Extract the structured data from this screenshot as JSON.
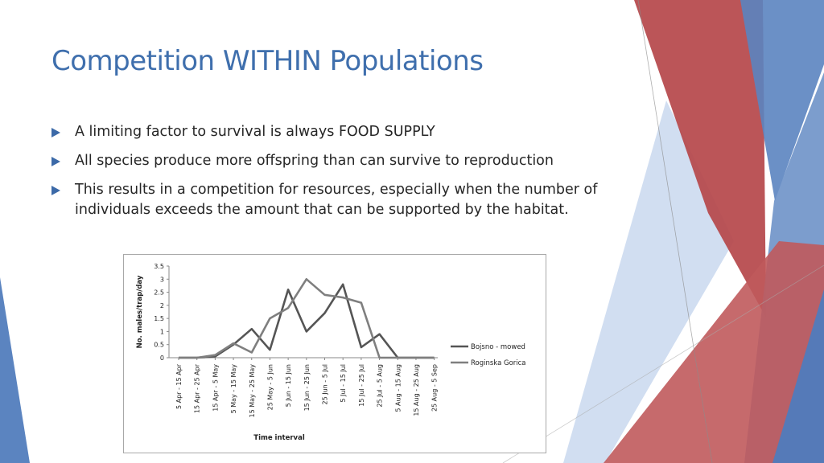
{
  "slide": {
    "title": "Competition WITHIN Populations",
    "bullets": [
      "A limiting factor to survival is always FOOD SUPPLY",
      "All species produce more offspring than can survive to reproduction",
      "This results in a competition for resources, especially when the number of individuals exceeds the amount that can be supported by the habitat."
    ],
    "bullet_icon": "triangle-right-icon",
    "colors": {
      "title": "#3f6fad",
      "bullet": "#3c6aa8",
      "text": "#262626",
      "deco_red": "#b5474a",
      "deco_blue": "#5b84c0"
    }
  },
  "chart_data": {
    "type": "line",
    "title": "",
    "xlabel": "Time interval",
    "ylabel": "No. males/trap/day",
    "ylim": [
      0,
      3.5
    ],
    "yticks": [
      "0",
      "0.5",
      "1",
      "1.5",
      "2",
      "2.5",
      "3",
      "3.5"
    ],
    "grid": false,
    "legend_position": "right",
    "categories": [
      "5 Apr - 15 Apr",
      "15 Apr - 25 Apr",
      "15 Apr - 5 May",
      "5 May - 15 May",
      "15 May - 25 May",
      "25 May - 5 Jun",
      "5 Jun - 15 Jun",
      "15 Jun - 25 Jun",
      "25 Jun - 5 Jul",
      "5 Jul - 15 Jul",
      "15 Jul - 25 Jul",
      "25 Jul - 5 Aug",
      "5 Aug - 15 Aug",
      "15 Aug - 25 Aug",
      "25 Aug - 5 Sep"
    ],
    "series": [
      {
        "name": "Bojsno - mowed",
        "color": "#555555",
        "values": [
          0,
          0,
          0.05,
          0.5,
          1.1,
          0.3,
          2.6,
          1.0,
          1.7,
          2.8,
          0.4,
          0.9,
          0,
          0,
          0
        ]
      },
      {
        "name": "Roginska Gorica",
        "color": "#7f7f7f",
        "values": [
          0,
          0,
          0.1,
          0.55,
          0.2,
          1.5,
          1.9,
          3.0,
          2.4,
          2.3,
          2.1,
          0,
          0,
          0,
          0
        ]
      }
    ]
  }
}
